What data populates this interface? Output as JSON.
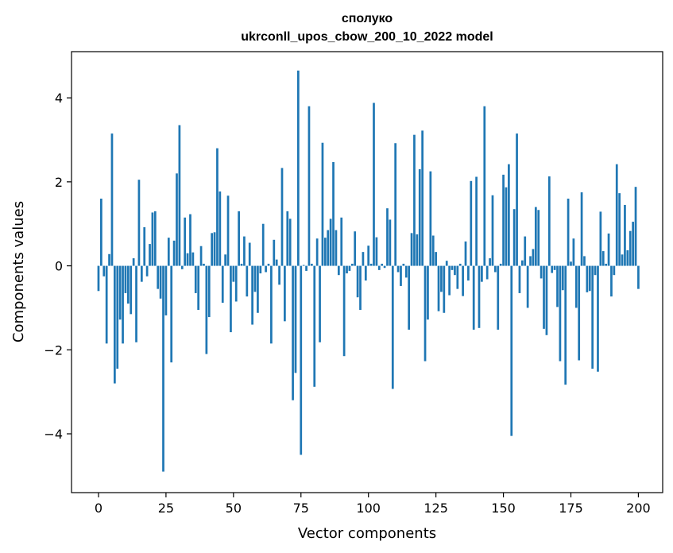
{
  "chart_data": {
    "type": "bar",
    "title_lines": [
      "сполуко",
      "ukrconll_upos_cbow_200_10_2022 model"
    ],
    "xlabel": "Vector components",
    "ylabel": "Components values",
    "xlim": [
      -10,
      209
    ],
    "ylim": [
      -5.4,
      5.1
    ],
    "xticks": [
      0,
      25,
      50,
      75,
      100,
      125,
      150,
      175,
      200
    ],
    "xtick_labels": [
      "0",
      "25",
      "50",
      "75",
      "100",
      "125",
      "150",
      "175",
      "200"
    ],
    "yticks": [
      -4,
      -2,
      0,
      2,
      4
    ],
    "ytick_labels": [
      "−4",
      "−2",
      "0",
      "2",
      "4"
    ],
    "grid": false,
    "bar_color": "#1f77b4",
    "values": [
      -0.6,
      1.6,
      -0.25,
      -1.85,
      0.28,
      3.15,
      -2.8,
      -2.45,
      -1.28,
      -1.85,
      -0.65,
      -0.9,
      -1.15,
      0.18,
      -1.82,
      2.05,
      -0.38,
      0.92,
      -0.25,
      0.52,
      1.27,
      1.3,
      -0.55,
      -0.78,
      -4.9,
      -1.18,
      0.67,
      -2.3,
      0.6,
      2.2,
      3.35,
      -0.08,
      1.15,
      0.3,
      1.23,
      0.32,
      -0.65,
      -1.05,
      0.47,
      0.05,
      -2.1,
      -1.22,
      0.78,
      0.8,
      2.8,
      1.77,
      -0.88,
      0.27,
      1.67,
      -1.58,
      -0.38,
      -0.85,
      1.3,
      0.05,
      0.7,
      -0.73,
      0.55,
      -1.4,
      -0.62,
      -1.12,
      -0.18,
      1.0,
      -0.15,
      0.05,
      -1.85,
      0.62,
      0.15,
      -0.45,
      2.33,
      -1.32,
      1.3,
      1.12,
      -3.2,
      -2.55,
      4.65,
      -4.5,
      0.02,
      -0.12,
      3.8,
      0.05,
      -2.88,
      0.65,
      -1.82,
      2.93,
      0.67,
      0.85,
      1.12,
      2.47,
      0.85,
      -0.22,
      1.15,
      -2.15,
      -0.18,
      -0.12,
      0.05,
      0.82,
      -0.75,
      -1.05,
      0.33,
      -0.35,
      0.48,
      0.05,
      3.88,
      0.68,
      -0.1,
      0.05,
      -0.05,
      1.37,
      1.1,
      -2.93,
      2.92,
      -0.15,
      -0.48,
      0.05,
      -0.28,
      -1.52,
      0.78,
      3.12,
      0.75,
      2.3,
      3.22,
      -2.27,
      -1.28,
      2.25,
      0.72,
      0.33,
      -1.08,
      -0.62,
      -1.12,
      0.12,
      -0.7,
      -0.1,
      -0.22,
      -0.55,
      0.05,
      -0.72,
      0.58,
      -0.35,
      2.02,
      -1.52,
      2.12,
      -1.48,
      -0.38,
      3.8,
      -0.32,
      0.18,
      1.68,
      -0.15,
      -1.52,
      0.05,
      2.17,
      1.87,
      2.42,
      -4.05,
      1.35,
      3.15,
      -0.65,
      0.13,
      0.7,
      -1.0,
      0.23,
      0.4,
      1.4,
      1.33,
      -0.3,
      -1.5,
      -1.65,
      2.13,
      -0.17,
      -0.1,
      -0.98,
      -2.27,
      -0.58,
      -2.83,
      1.6,
      0.1,
      0.65,
      -1.0,
      -2.25,
      1.75,
      0.23,
      -0.63,
      -0.6,
      -2.45,
      -0.22,
      -2.52,
      1.29,
      0.35,
      0.05,
      0.77,
      -0.73,
      -0.22,
      2.42,
      1.73,
      0.27,
      1.45,
      0.37,
      0.83,
      1.05,
      1.88,
      -0.55
    ]
  }
}
